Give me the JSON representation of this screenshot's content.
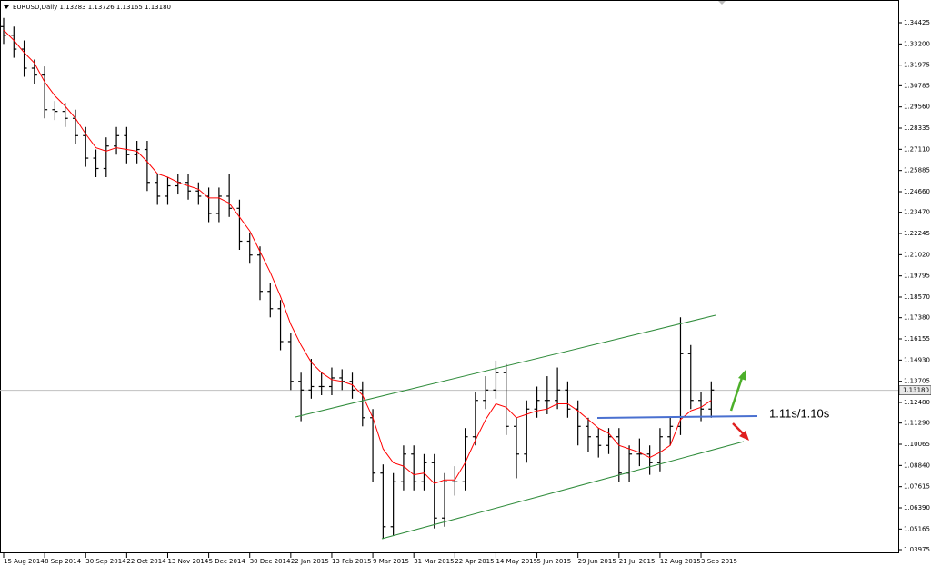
{
  "chart_data": {
    "type": "ohlc",
    "title": "EURUSD,Daily  1.13283 1.13726 1.13165 1.13180",
    "categories": [
      "15 Aug 2014",
      null,
      null,
      null,
      "8 Sep 2014",
      null,
      null,
      null,
      "30 Sep 2014",
      null,
      null,
      null,
      "22 Oct 2014",
      null,
      null,
      null,
      "13 Nov 2014",
      null,
      null,
      null,
      "5 Dec 2014",
      null,
      null,
      null,
      "30 Dec 2014",
      null,
      null,
      null,
      "22 Jan 2015",
      null,
      null,
      null,
      "13 Feb 2015",
      null,
      null,
      null,
      "9 Mar 2015",
      null,
      null,
      null,
      "31 Mar 2015",
      null,
      null,
      null,
      "22 Apr 2015",
      null,
      null,
      null,
      "14 May 2015",
      null,
      null,
      null,
      "5 Jun 2015",
      null,
      null,
      null,
      "29 Jun 2015",
      null,
      null,
      null,
      "21 Jul 2015",
      null,
      null,
      null,
      "12 Aug 2015",
      null,
      null,
      null,
      "3 Sep 2015",
      null
    ],
    "open": [
      1.342,
      1.337,
      1.329,
      1.318,
      1.314,
      1.294,
      1.293,
      1.289,
      1.279,
      1.266,
      1.26,
      1.273,
      1.279,
      1.268,
      1.271,
      1.252,
      1.244,
      1.25,
      1.252,
      1.247,
      1.244,
      1.234,
      1.244,
      1.237,
      1.218,
      1.21,
      1.189,
      1.179,
      1.16,
      1.137,
      1.132,
      1.134,
      1.134,
      1.139,
      1.137,
      1.132,
      1.116,
      1.084,
      1.053,
      1.079,
      1.095,
      1.079,
      1.09,
      1.058,
      1.079,
      1.079,
      1.105,
      1.126,
      1.132,
      1.142,
      1.111,
      1.095,
      1.121,
      1.126,
      1.126,
      1.132,
      1.121,
      1.111,
      1.105,
      1.1,
      1.105,
      1.084,
      1.095,
      1.095,
      1.09,
      1.105,
      1.111,
      1.153,
      1.126,
      1.121
    ],
    "high": [
      1.347,
      1.342,
      1.334,
      1.323,
      1.319,
      1.299,
      1.298,
      1.294,
      1.284,
      1.271,
      1.278,
      1.284,
      1.284,
      1.276,
      1.276,
      1.257,
      1.255,
      1.257,
      1.257,
      1.252,
      1.249,
      1.249,
      1.257,
      1.242,
      1.223,
      1.215,
      1.194,
      1.184,
      1.165,
      1.142,
      1.15,
      1.142,
      1.145,
      1.144,
      1.142,
      1.137,
      1.121,
      1.089,
      1.084,
      1.1,
      1.1,
      1.095,
      1.095,
      1.084,
      1.088,
      1.11,
      1.131,
      1.14,
      1.149,
      1.147,
      1.116,
      1.126,
      1.134,
      1.14,
      1.145,
      1.137,
      1.126,
      1.116,
      1.11,
      1.11,
      1.11,
      1.1,
      1.104,
      1.1,
      1.11,
      1.116,
      1.174,
      1.158,
      1.131,
      1.137
    ],
    "low": [
      1.332,
      1.324,
      1.313,
      1.309,
      1.289,
      1.288,
      1.284,
      1.274,
      1.261,
      1.255,
      1.255,
      1.268,
      1.263,
      1.263,
      1.247,
      1.239,
      1.239,
      1.245,
      1.242,
      1.239,
      1.229,
      1.229,
      1.232,
      1.213,
      1.205,
      1.184,
      1.174,
      1.155,
      1.132,
      1.114,
      1.127,
      1.129,
      1.129,
      1.132,
      1.127,
      1.111,
      1.079,
      1.046,
      1.048,
      1.074,
      1.074,
      1.074,
      1.052,
      1.053,
      1.071,
      1.074,
      1.1,
      1.121,
      1.127,
      1.106,
      1.081,
      1.09,
      1.116,
      1.118,
      1.121,
      1.116,
      1.1,
      1.096,
      1.093,
      1.095,
      1.079,
      1.079,
      1.088,
      1.083,
      1.085,
      1.1,
      1.106,
      1.121,
      1.114,
      1.116
    ],
    "close": [
      1.337,
      1.329,
      1.318,
      1.314,
      1.294,
      1.293,
      1.289,
      1.279,
      1.266,
      1.26,
      1.273,
      1.279,
      1.268,
      1.271,
      1.252,
      1.244,
      1.25,
      1.252,
      1.247,
      1.244,
      1.234,
      1.244,
      1.237,
      1.218,
      1.21,
      1.189,
      1.179,
      1.16,
      1.137,
      1.132,
      1.134,
      1.134,
      1.139,
      1.137,
      1.132,
      1.116,
      1.084,
      1.053,
      1.079,
      1.095,
      1.079,
      1.09,
      1.058,
      1.079,
      1.079,
      1.105,
      1.126,
      1.132,
      1.142,
      1.111,
      1.095,
      1.121,
      1.126,
      1.126,
      1.132,
      1.121,
      1.111,
      1.105,
      1.1,
      1.105,
      1.084,
      1.095,
      1.095,
      1.09,
      1.105,
      1.111,
      1.153,
      1.126,
      1.121,
      1.132
    ],
    "color": "#000000",
    "moving_average": {
      "color": "#ff0000",
      "values": [
        1.34,
        1.334,
        1.327,
        1.321,
        1.31,
        1.302,
        1.296,
        1.289,
        1.28,
        1.272,
        1.27,
        1.272,
        1.271,
        1.27,
        1.264,
        1.257,
        1.255,
        1.252,
        1.25,
        1.248,
        1.243,
        1.243,
        1.24,
        1.232,
        1.224,
        1.212,
        1.2,
        1.186,
        1.17,
        1.158,
        1.148,
        1.142,
        1.138,
        1.137,
        1.135,
        1.129,
        1.116,
        1.098,
        1.09,
        1.088,
        1.083,
        1.084,
        1.078,
        1.08,
        1.08,
        1.09,
        1.103,
        1.115,
        1.124,
        1.122,
        1.116,
        1.118,
        1.12,
        1.121,
        1.124,
        1.124,
        1.12,
        1.115,
        1.11,
        1.107,
        1.1,
        1.098,
        1.096,
        1.093,
        1.096,
        1.1,
        1.115,
        1.12,
        1.122,
        1.126
      ]
    },
    "ylim": [
      1.03713,
      1.35738
    ],
    "yticks": [
      {
        "value": 1.34425,
        "label": "1.34425"
      },
      {
        "value": 1.332,
        "label": "1.33200"
      },
      {
        "value": 1.31975,
        "label": "1.31975"
      },
      {
        "value": 1.30785,
        "label": "1.30785"
      },
      {
        "value": 1.2956,
        "label": "1.29560"
      },
      {
        "value": 1.28335,
        "label": "1.28335"
      },
      {
        "value": 1.2711,
        "label": "1.27110"
      },
      {
        "value": 1.25885,
        "label": "1.25885"
      },
      {
        "value": 1.2466,
        "label": "1.24660"
      },
      {
        "value": 1.2347,
        "label": "1.23470"
      },
      {
        "value": 1.22245,
        "label": "1.22245"
      },
      {
        "value": 1.2102,
        "label": "1.21020"
      },
      {
        "value": 1.19795,
        "label": "1.19795"
      },
      {
        "value": 1.1857,
        "label": "1.18570"
      },
      {
        "value": 1.1738,
        "label": "1.17380"
      },
      {
        "value": 1.16155,
        "label": "1.16155"
      },
      {
        "value": 1.1493,
        "label": "1.14930"
      },
      {
        "value": 1.13705,
        "label": "1.13705"
      },
      {
        "value": 1.1248,
        "label": "1.12480"
      },
      {
        "value": 1.1129,
        "label": "1.11290"
      },
      {
        "value": 1.10065,
        "label": "1.10065"
      },
      {
        "value": 1.0884,
        "label": "1.08840"
      },
      {
        "value": 1.07615,
        "label": "1.07615"
      },
      {
        "value": 1.0639,
        "label": "1.06390"
      },
      {
        "value": 1.05165,
        "label": "1.05165"
      },
      {
        "value": 1.03975,
        "label": "1.03975"
      }
    ],
    "current_price": {
      "value": 1.1318,
      "label": "1.13180"
    },
    "annotation": "1.11s/1.10s",
    "grid": false
  }
}
